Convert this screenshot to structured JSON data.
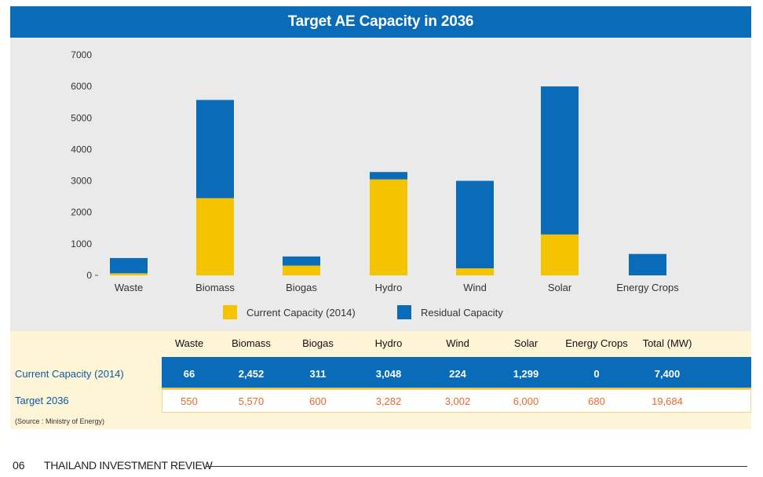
{
  "chart_data": {
    "type": "bar",
    "stacked": true,
    "title": "Target AE Capacity in 2036",
    "categories": [
      "Waste",
      "Biomass",
      "Biogas",
      "Hydro",
      "Wind",
      "Solar",
      "Energy Crops"
    ],
    "series": [
      {
        "name": "Current Capacity (2014)",
        "color": "#f5c400",
        "values": [
          66,
          2452,
          311,
          3048,
          224,
          1299,
          0
        ]
      },
      {
        "name": "Residual Capacity",
        "color": "#0a6bb8",
        "values": [
          484,
          3118,
          289,
          234,
          2778,
          4701,
          680
        ]
      }
    ],
    "ylim": [
      0,
      7000
    ],
    "yticks": [
      0,
      1000,
      2000,
      3000,
      4000,
      5000,
      6000,
      7000
    ],
    "legend_position": "bottom"
  },
  "table": {
    "columns": [
      "Waste",
      "Biomass",
      "Biogas",
      "Hydro",
      "Wind",
      "Solar",
      "Energy Crops",
      "Total (MW)"
    ],
    "rows": [
      {
        "label": "Current Capacity (2014)",
        "values": [
          "66",
          "2,452",
          "311",
          "3,048",
          "224",
          "1,299",
          "0",
          "7,400"
        ]
      },
      {
        "label": "Target 2036",
        "values": [
          "550",
          "5,570",
          "600",
          "3,282",
          "3,002",
          "6,000",
          "680",
          "19,684"
        ]
      }
    ],
    "source": "(Source : Ministry of Energy)"
  },
  "footer": {
    "page_number": "06",
    "publication": "THAILAND INVESTMENT REVIEW"
  }
}
